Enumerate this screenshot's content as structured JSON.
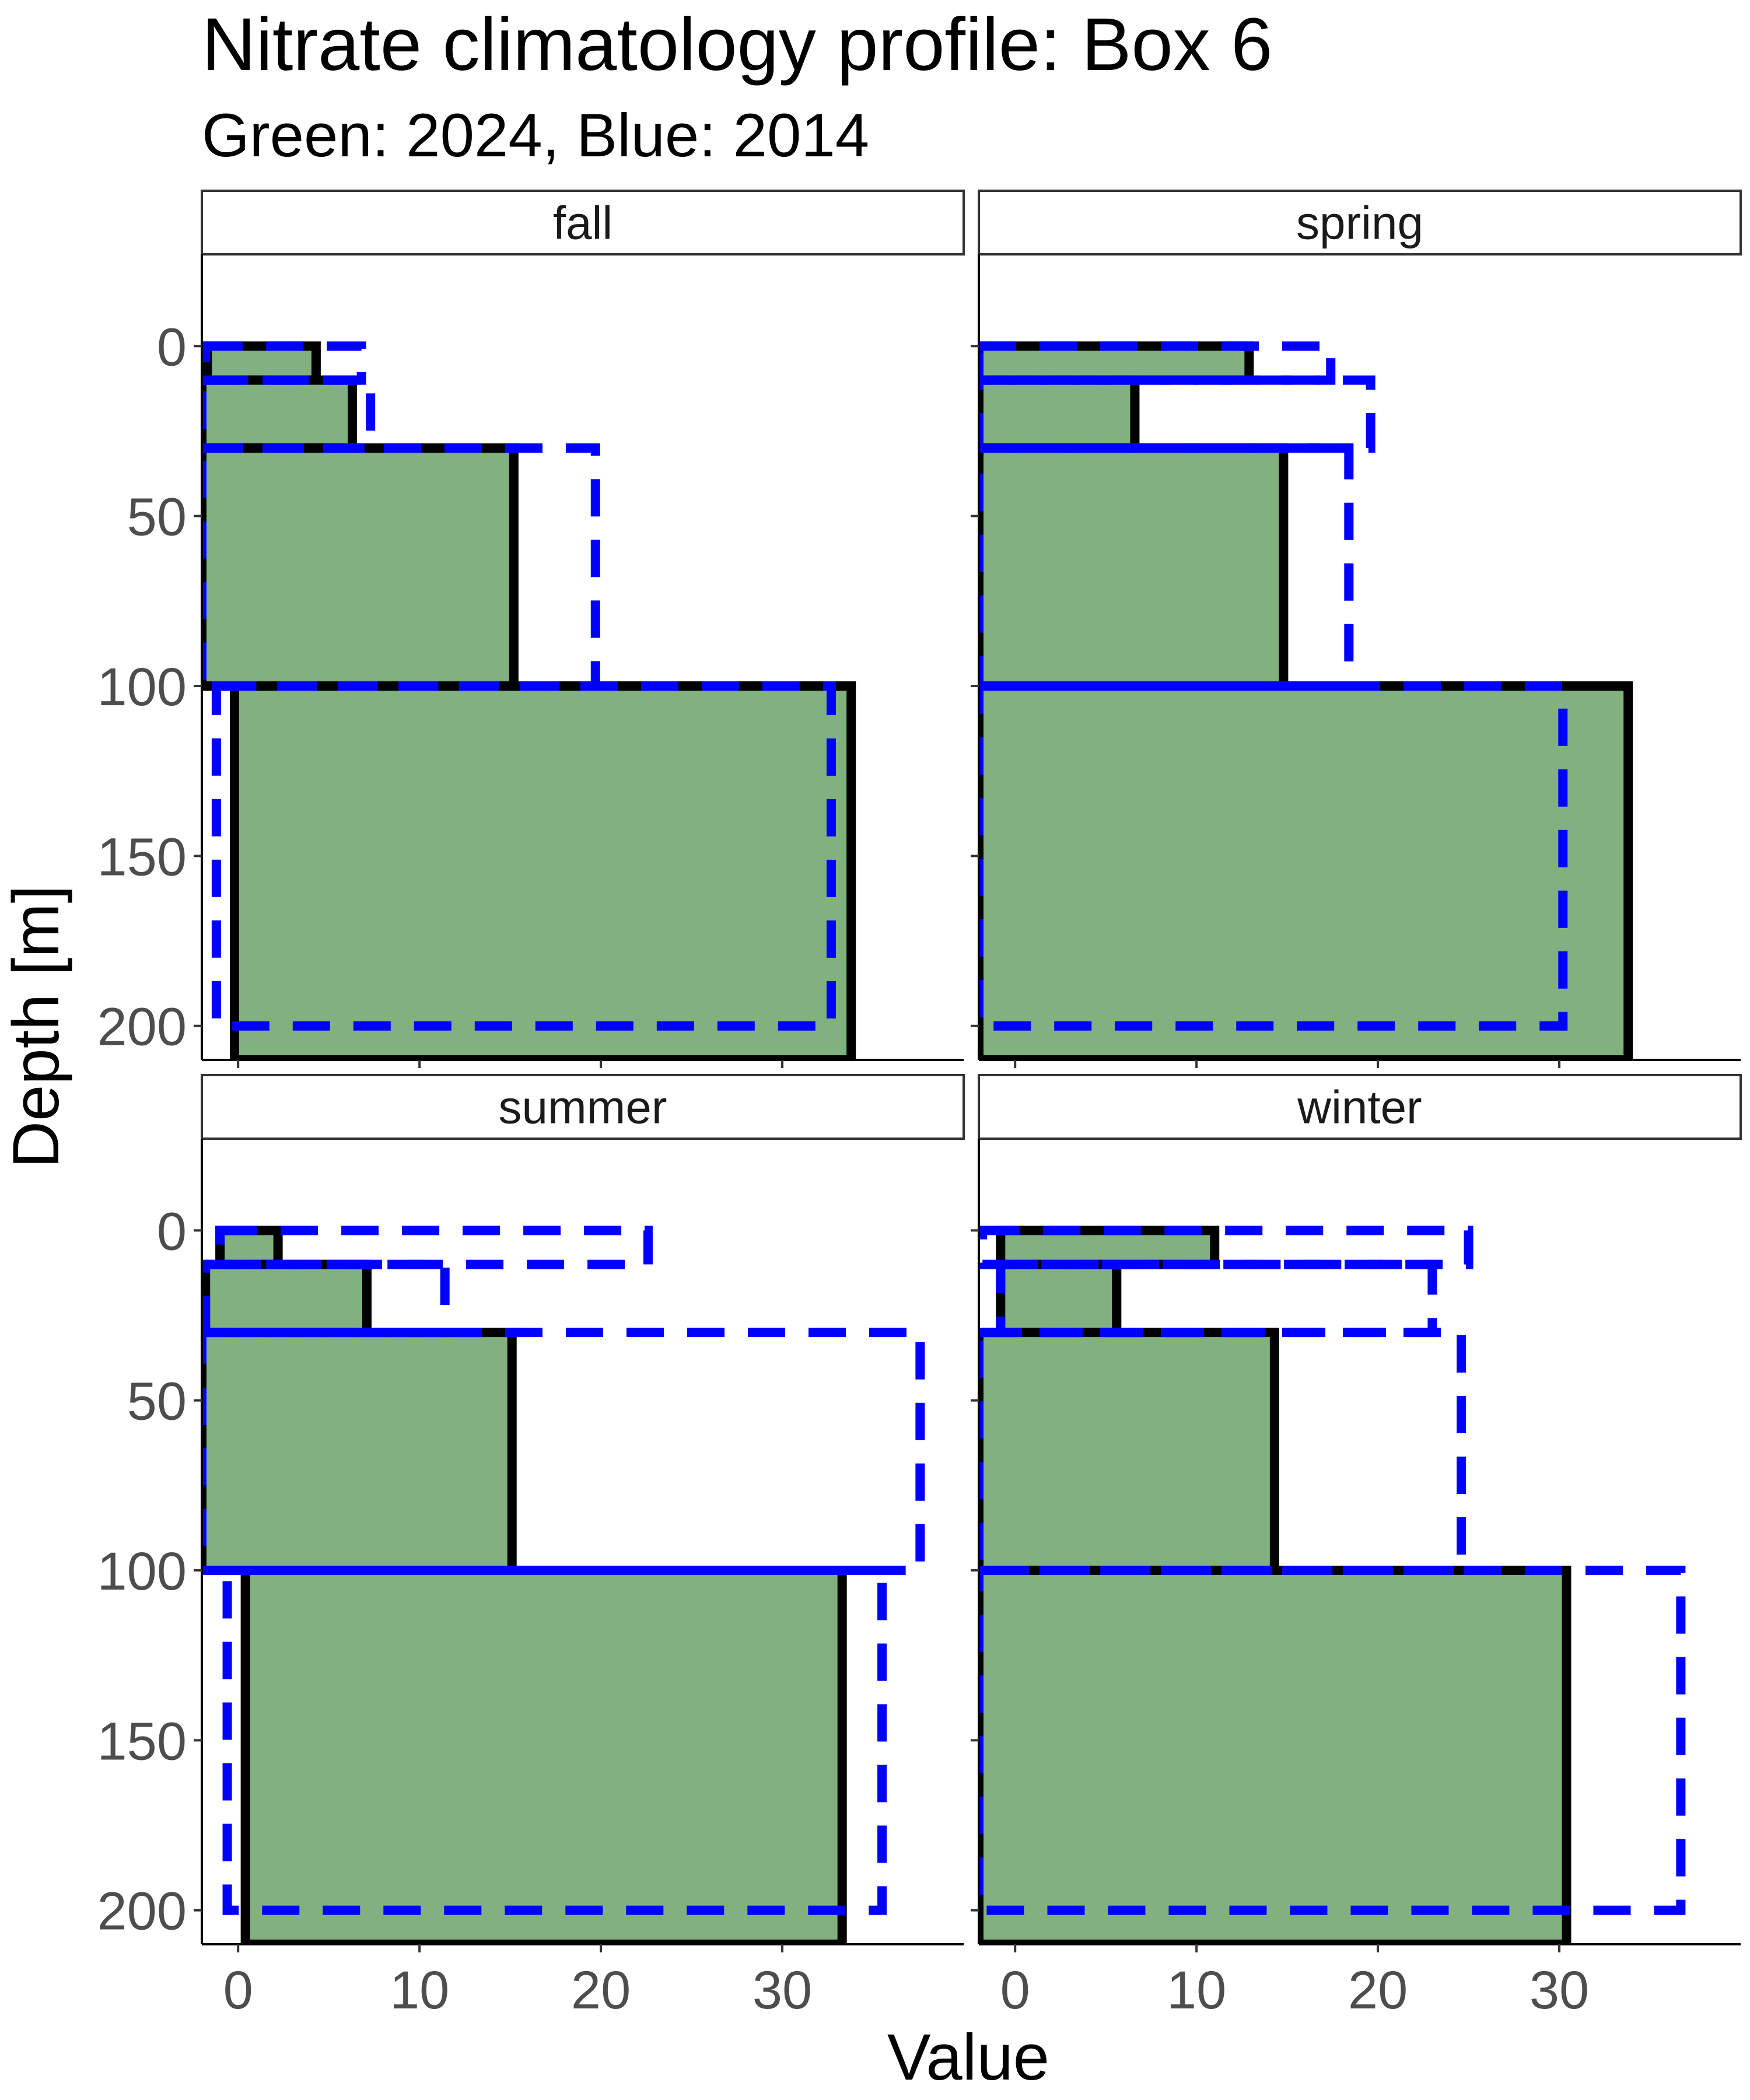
{
  "title": "Nitrate climatology profile: Box 6",
  "subtitle": "Green: 2024, Blue: 2014",
  "colors": {
    "fill_2024": "#80b17f",
    "outline_2024": "#000000",
    "line_2014": "#0000ff",
    "background": "#ffffff"
  },
  "chart_data": {
    "type": "bar",
    "orientation": "horizontal",
    "facet_layout": "2x2",
    "xlabel": "Value",
    "ylabel": "Depth [m]",
    "xlim": [
      -2,
      40
    ],
    "ylim": [
      210,
      -27
    ],
    "x_ticks": [
      "0",
      "10",
      "20",
      "30"
    ],
    "y_ticks": [
      "0",
      "50",
      "100",
      "150",
      "200"
    ],
    "series_styles": {
      "2024": "green filled bars with black outline",
      "2014": "blue dashed outline"
    },
    "panels": [
      {
        "label": "fall",
        "series_2024": [
          {
            "depth": [
              0,
              10
            ],
            "x": [
              -1.7,
              4.3
            ]
          },
          {
            "depth": [
              10,
              30
            ],
            "x": [
              -2,
              6.3
            ]
          },
          {
            "depth": [
              30,
              100
            ],
            "x": [
              -2,
              15.2
            ]
          },
          {
            "depth": [
              100,
              210
            ],
            "x": [
              -0.2,
              33.8
            ]
          }
        ],
        "series_2014": [
          {
            "depth": [
              0,
              10
            ],
            "x": [
              -1.8,
              6.8
            ]
          },
          {
            "depth": [
              10,
              30
            ],
            "x": [
              -2,
              7.3
            ]
          },
          {
            "depth": [
              30,
              100
            ],
            "x": [
              -2,
              19.7
            ]
          },
          {
            "depth": [
              100,
              200
            ],
            "x": [
              -1.2,
              32.7
            ]
          }
        ]
      },
      {
        "label": "spring",
        "series_2024": [
          {
            "depth": [
              0,
              10
            ],
            "x": [
              -2,
              12.9
            ]
          },
          {
            "depth": [
              10,
              30
            ],
            "x": [
              -2,
              6.6
            ]
          },
          {
            "depth": [
              30,
              100
            ],
            "x": [
              -2,
              14.8
            ]
          },
          {
            "depth": [
              100,
              210
            ],
            "x": [
              -2,
              33.8
            ]
          }
        ],
        "series_2014": [
          {
            "depth": [
              0,
              10
            ],
            "x": [
              -2,
              17.4
            ]
          },
          {
            "depth": [
              10,
              30
            ],
            "x": [
              -2,
              19.6
            ]
          },
          {
            "depth": [
              30,
              100
            ],
            "x": [
              -2,
              18.4
            ]
          },
          {
            "depth": [
              100,
              200
            ],
            "x": [
              -2,
              30.2
            ]
          }
        ]
      },
      {
        "label": "summer",
        "series_2024": [
          {
            "depth": [
              0,
              10
            ],
            "x": [
              -1.0,
              2.2
            ]
          },
          {
            "depth": [
              10,
              30
            ],
            "x": [
              -1.8,
              7.1
            ]
          },
          {
            "depth": [
              30,
              100
            ],
            "x": [
              -2,
              15.1
            ]
          },
          {
            "depth": [
              100,
              210
            ],
            "x": [
              0.4,
              33.3
            ]
          }
        ],
        "series_2014": [
          {
            "depth": [
              0,
              10
            ],
            "x": [
              -1.0,
              22.6
            ]
          },
          {
            "depth": [
              10,
              30
            ],
            "x": [
              -1.8,
              11.4
            ]
          },
          {
            "depth": [
              30,
              100
            ],
            "x": [
              -2,
              37.6
            ]
          },
          {
            "depth": [
              100,
              200
            ],
            "x": [
              -0.6,
              35.5
            ]
          }
        ]
      },
      {
        "label": "winter",
        "series_2024": [
          {
            "depth": [
              0,
              10
            ],
            "x": [
              -0.8,
              11.0
            ]
          },
          {
            "depth": [
              10,
              30
            ],
            "x": [
              -0.8,
              5.6
            ]
          },
          {
            "depth": [
              30,
              100
            ],
            "x": [
              -2,
              14.3
            ]
          },
          {
            "depth": [
              100,
              210
            ],
            "x": [
              -2,
              30.4
            ]
          }
        ],
        "series_2014": [
          {
            "depth": [
              0,
              10
            ],
            "x": [
              -1.8,
              25.0
            ]
          },
          {
            "depth": [
              10,
              30
            ],
            "x": [
              -0.8,
              23.0
            ]
          },
          {
            "depth": [
              30,
              100
            ],
            "x": [
              -2,
              24.6
            ]
          },
          {
            "depth": [
              100,
              200
            ],
            "x": [
              -2,
              36.7
            ]
          }
        ]
      }
    ]
  }
}
